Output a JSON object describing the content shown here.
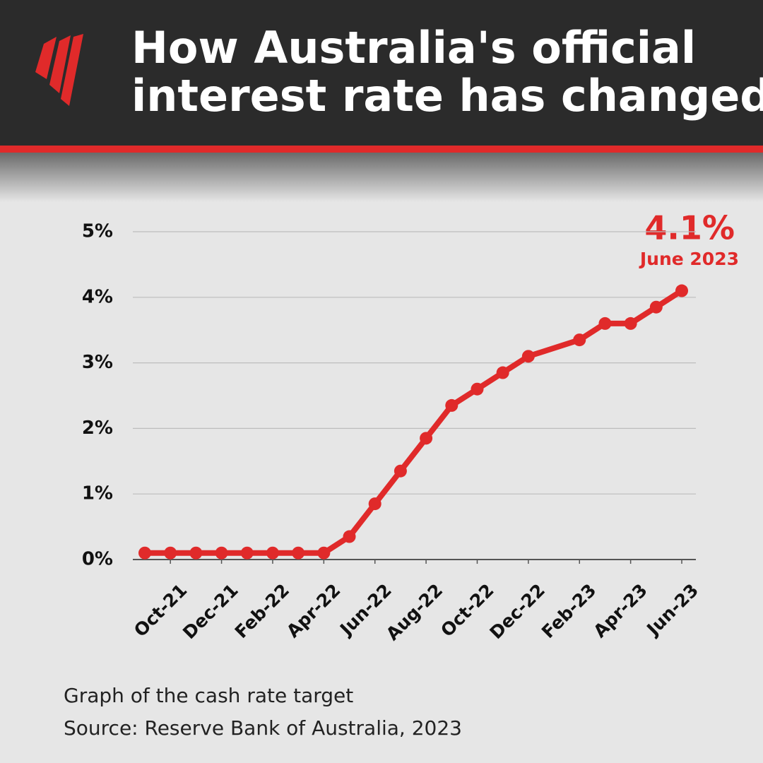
{
  "chart_data": {
    "type": "line",
    "title": "How Australia's official interest rate has changed",
    "x": [
      "2021-09",
      "2021-10",
      "2021-11",
      "2021-12",
      "2022-01",
      "2022-02",
      "2022-03",
      "2022-04",
      "2022-05",
      "2022-06",
      "2022-07",
      "2022-08",
      "2022-09",
      "2022-10",
      "2022-11",
      "2022-12",
      "2023-02",
      "2023-03",
      "2023-04",
      "2023-05",
      "2023-06"
    ],
    "series": [
      {
        "name": "Cash rate target",
        "color": "#e02a2a",
        "values": [
          0.1,
          0.1,
          0.1,
          0.1,
          0.1,
          0.1,
          0.1,
          0.1,
          0.35,
          0.85,
          1.35,
          1.85,
          2.35,
          2.6,
          2.85,
          3.1,
          3.35,
          3.6,
          3.6,
          3.85,
          4.1
        ]
      }
    ],
    "xticks": [
      {
        "value": "2021-10",
        "label": "Oct-21"
      },
      {
        "value": "2021-12",
        "label": "Dec-21"
      },
      {
        "value": "2022-02",
        "label": "Feb-22"
      },
      {
        "value": "2022-04",
        "label": "Apr-22"
      },
      {
        "value": "2022-06",
        "label": "Jun-22"
      },
      {
        "value": "2022-08",
        "label": "Aug-22"
      },
      {
        "value": "2022-10",
        "label": "Oct-22"
      },
      {
        "value": "2022-12",
        "label": "Dec-22"
      },
      {
        "value": "2023-02",
        "label": "Feb-23"
      },
      {
        "value": "2023-04",
        "label": "Apr-23"
      },
      {
        "value": "2023-06",
        "label": "Jun-23"
      }
    ],
    "ylim": [
      0,
      5
    ],
    "yticks": [
      {
        "value": 0,
        "label": "0%"
      },
      {
        "value": 1,
        "label": "1%"
      },
      {
        "value": 2,
        "label": "2%"
      },
      {
        "value": 3,
        "label": "3%"
      },
      {
        "value": 4,
        "label": "4%"
      },
      {
        "value": 5,
        "label": "5%"
      }
    ],
    "grid": true,
    "annotation": {
      "text": "4.1%",
      "subtext": "June 2023"
    },
    "notes": [
      "Graph of the cash rate target",
      "Source: Reserve Bank of Australia, 2023"
    ]
  }
}
